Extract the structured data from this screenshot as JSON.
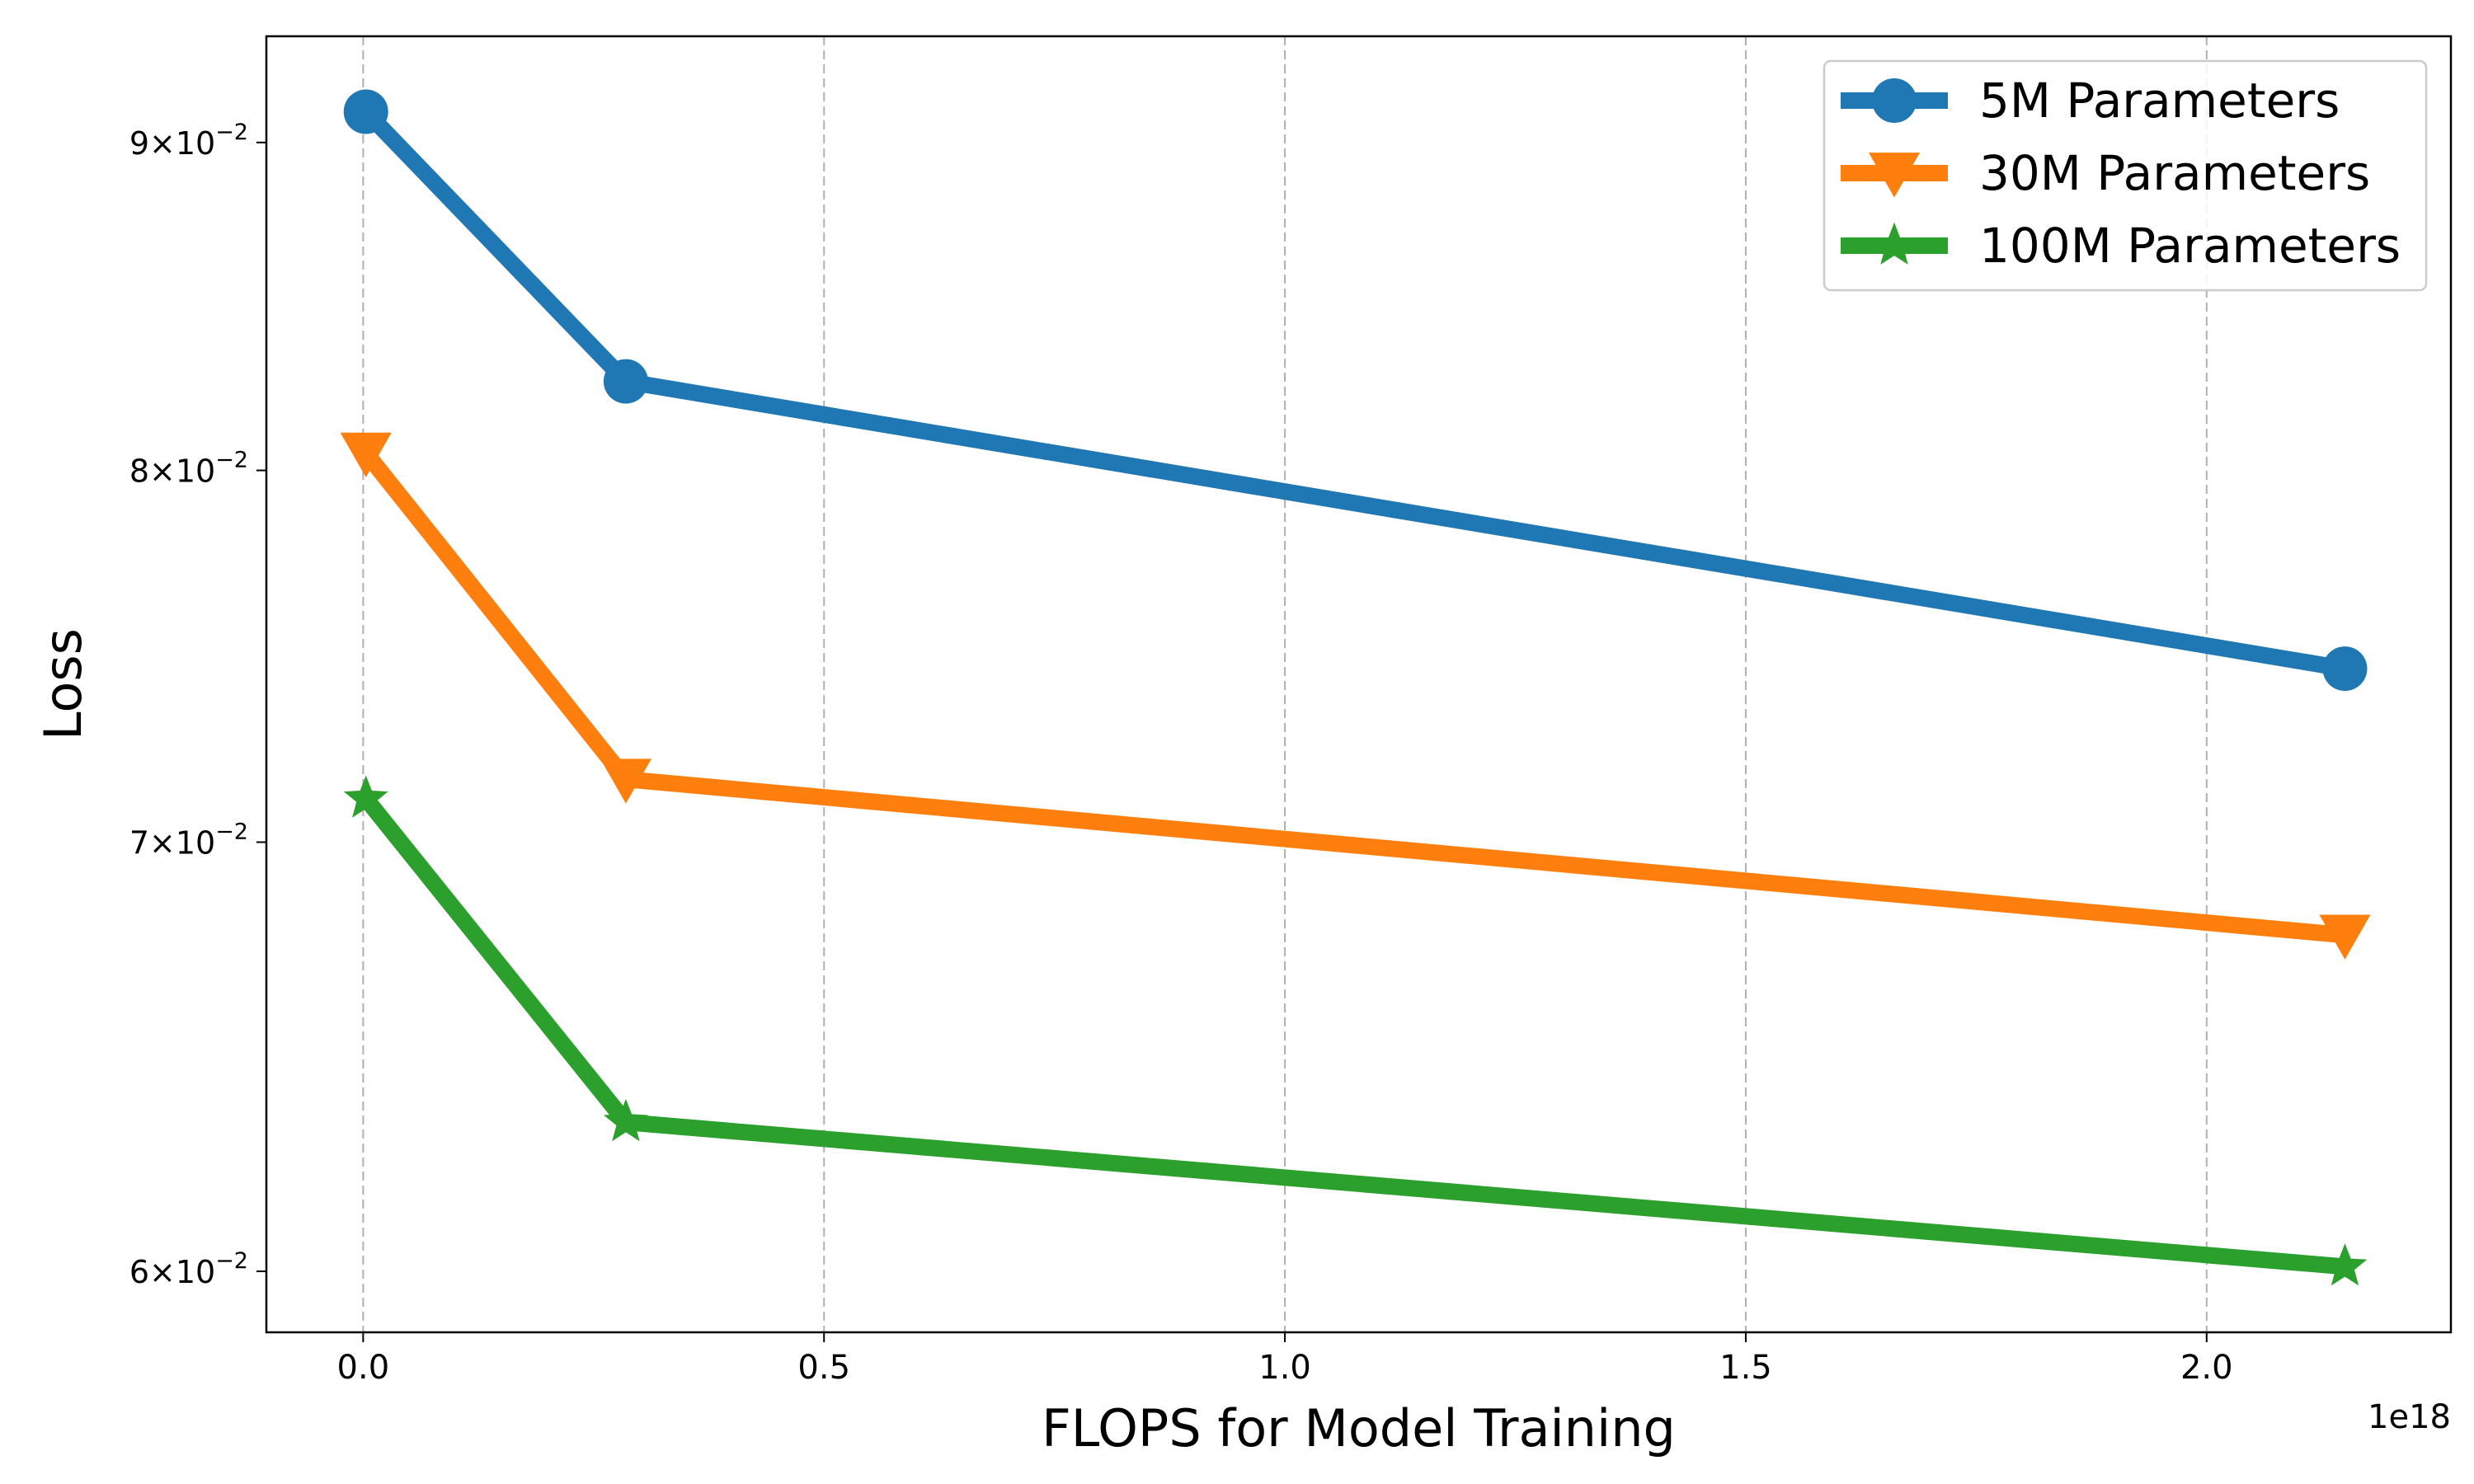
{
  "chart_data": {
    "type": "line",
    "title": "",
    "xlabel": "FLOPS for Model Training",
    "ylabel": "Loss",
    "x_offset_label": "1e18",
    "x_scale_factor": 1e+18,
    "xlim": [
      -0.105,
      2.265
    ],
    "ylim": [
      0.0587,
      0.0935
    ],
    "yscale": "log",
    "grid": "x-dashed",
    "legend_position": "top-right",
    "x_ticks": [
      {
        "value": 0.0,
        "label": "0.0"
      },
      {
        "value": 0.5,
        "label": "0.5"
      },
      {
        "value": 1.0,
        "label": "1.0"
      },
      {
        "value": 1.5,
        "label": "1.5"
      },
      {
        "value": 2.0,
        "label": "2.0"
      }
    ],
    "y_ticks": [
      {
        "value": 0.06,
        "mantissa": "6",
        "base": "10",
        "exponent": "−2"
      },
      {
        "value": 0.07,
        "mantissa": "7",
        "base": "10",
        "exponent": "−2"
      },
      {
        "value": 0.08,
        "mantissa": "8",
        "base": "10",
        "exponent": "−2"
      },
      {
        "value": 0.09,
        "mantissa": "9",
        "base": "10",
        "exponent": "−2"
      }
    ],
    "series": [
      {
        "name": "5M Parameters",
        "color": "#1f77b4",
        "marker": "circle",
        "x": [
          0.003,
          0.285,
          2.15
        ],
        "y": [
          0.091,
          0.0826,
          0.0745
        ]
      },
      {
        "name": "30M Parameters",
        "color": "#ff7f0e",
        "marker": "triangle-down",
        "x": [
          0.003,
          0.285,
          2.15
        ],
        "y": [
          0.0805,
          0.0716,
          0.0677
        ]
      },
      {
        "name": "100M Parameters",
        "color": "#2ca02c",
        "marker": "star",
        "x": [
          0.003,
          0.285,
          2.15
        ],
        "y": [
          0.0711,
          0.0633,
          0.0601
        ]
      }
    ]
  }
}
